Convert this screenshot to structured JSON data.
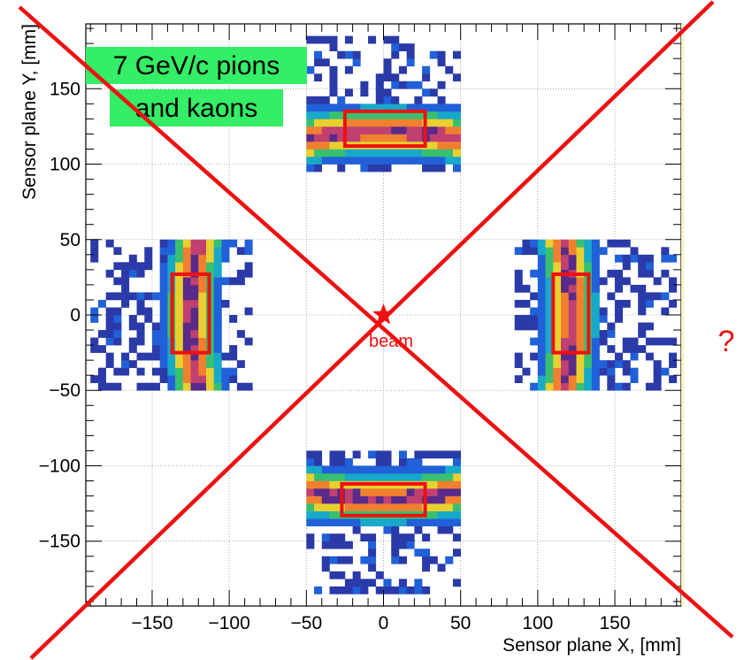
{
  "chart_data": {
    "type": "heatmap",
    "xlabel": "Sensor plane X, [mm]",
    "ylabel": "Sensor plane Y, [mm]",
    "xlim": [
      -193,
      193
    ],
    "ylim": [
      -193,
      193
    ],
    "x_ticks": [
      -150,
      -100,
      -50,
      0,
      50,
      100,
      150
    ],
    "y_ticks": [
      -150,
      -100,
      -50,
      0,
      50,
      100,
      150
    ],
    "x_tick_labels": [
      "−150",
      "−100",
      "−50",
      "0",
      "50",
      "100",
      "150"
    ],
    "y_tick_labels": [
      "−150",
      "−100",
      "−50",
      "0",
      "50",
      "100",
      "150"
    ],
    "grid": true,
    "annotation_lines": [
      "7 GeV/c pions",
      "and kaons"
    ],
    "annotation_bg": "#33ee66",
    "beam": {
      "x": 0,
      "y": 0,
      "label": "beam"
    },
    "side_mark": "?",
    "overlay_color": "#ee1111",
    "sensor_regions": [
      {
        "name": "top",
        "x": [
          -50,
          50
        ],
        "y": [
          95,
          185
        ]
      },
      {
        "name": "bottom",
        "x": [
          -50,
          50
        ],
        "y": [
          -185,
          -90
        ]
      },
      {
        "name": "left",
        "x": [
          -190,
          -85
        ],
        "y": [
          -50,
          50
        ]
      },
      {
        "name": "right",
        "x": [
          85,
          190
        ],
        "y": [
          -50,
          50
        ]
      }
    ],
    "ring_selection_boxes": [
      {
        "name": "top",
        "x": [
          -25,
          27
        ],
        "y": [
          112,
          135
        ]
      },
      {
        "name": "bottom",
        "x": [
          -27,
          27
        ],
        "y": [
          -133,
          -112
        ]
      },
      {
        "name": "left",
        "x": [
          -137,
          -113
        ],
        "y": [
          -25,
          27
        ]
      },
      {
        "name": "right",
        "x": [
          110,
          133
        ],
        "y": [
          -25,
          27
        ]
      }
    ]
  }
}
